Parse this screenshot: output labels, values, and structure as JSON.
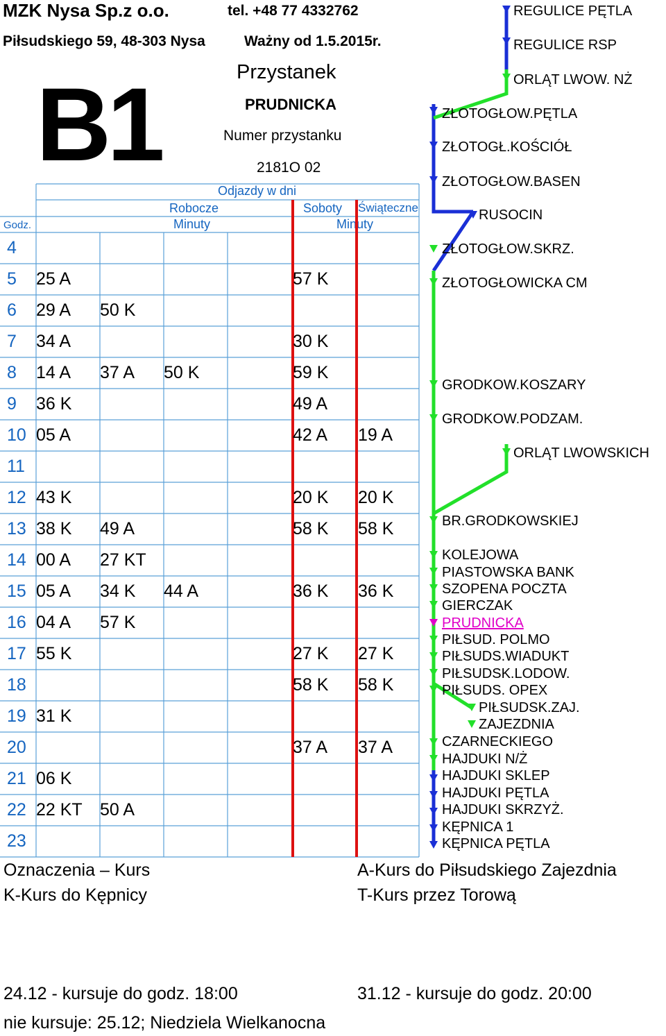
{
  "company": {
    "name": "MZK Nysa Sp.z o.o.",
    "phone": "tel. +48 77 4332762",
    "address": "Piłsudskiego 59, 48-303 Nysa",
    "valid_from": "Ważny od 1.5.2015r."
  },
  "route": "B1",
  "stop_block": {
    "label": "Przystanek",
    "name": "PRUDNICKA",
    "number_label": "Numer przystanku",
    "number": "2181O 02"
  },
  "table": {
    "departures_label": "Odjazdy w dni",
    "col_weekdays": "Robocze",
    "col_saturdays": "Soboty",
    "col_holidays": "Świąteczne",
    "hour_label": "Godz.",
    "minutes_label_1": "Minuty",
    "minutes_label_2": "Minuty",
    "rows": [
      {
        "hour": "4",
        "weekday": [
          "",
          "",
          ""
        ],
        "sat": "",
        "hol": ""
      },
      {
        "hour": "5",
        "weekday": [
          "25 A",
          "",
          ""
        ],
        "sat": "57 K",
        "hol": ""
      },
      {
        "hour": "6",
        "weekday": [
          "29 A",
          "50 K",
          ""
        ],
        "sat": "",
        "hol": ""
      },
      {
        "hour": "7",
        "weekday": [
          "34 A",
          "",
          ""
        ],
        "sat": "30 K",
        "hol": ""
      },
      {
        "hour": "8",
        "weekday": [
          "14 A",
          "37 A",
          "50 K"
        ],
        "sat": "59 K",
        "hol": ""
      },
      {
        "hour": "9",
        "weekday": [
          "36 K",
          "",
          ""
        ],
        "sat": "49 A",
        "hol": ""
      },
      {
        "hour": "10",
        "weekday": [
          "05 A",
          "",
          ""
        ],
        "sat": "42 A",
        "hol": "19 A"
      },
      {
        "hour": "11",
        "weekday": [
          "",
          "",
          ""
        ],
        "sat": "",
        "hol": ""
      },
      {
        "hour": "12",
        "weekday": [
          "43 K",
          "",
          ""
        ],
        "sat": "20 K",
        "hol": "20 K"
      },
      {
        "hour": "13",
        "weekday": [
          "38 K",
          "49 A",
          ""
        ],
        "sat": "58 K",
        "hol": "58 K"
      },
      {
        "hour": "14",
        "weekday": [
          "00 A",
          "27 KT",
          ""
        ],
        "sat": "",
        "hol": ""
      },
      {
        "hour": "15",
        "weekday": [
          "05 A",
          "34 K",
          "44 A"
        ],
        "sat": "36 K",
        "hol": "36 K"
      },
      {
        "hour": "16",
        "weekday": [
          "04 A",
          "57 K",
          ""
        ],
        "sat": "",
        "hol": ""
      },
      {
        "hour": "17",
        "weekday": [
          "55 K",
          "",
          ""
        ],
        "sat": "27 K",
        "hol": "27 K"
      },
      {
        "hour": "18",
        "weekday": [
          "",
          "",
          ""
        ],
        "sat": "58 K",
        "hol": "58 K"
      },
      {
        "hour": "19",
        "weekday": [
          "31 K",
          "",
          ""
        ],
        "sat": "",
        "hol": ""
      },
      {
        "hour": "20",
        "weekday": [
          "",
          "",
          ""
        ],
        "sat": "37 A",
        "hol": "37 A"
      },
      {
        "hour": "21",
        "weekday": [
          "06 K",
          "",
          ""
        ],
        "sat": "",
        "hol": ""
      },
      {
        "hour": "22",
        "weekday": [
          "22 KT",
          "50 A",
          ""
        ],
        "sat": "",
        "hol": ""
      },
      {
        "hour": "23",
        "weekday": [
          "",
          "",
          ""
        ],
        "sat": "",
        "hol": ""
      }
    ]
  },
  "stops": [
    {
      "name": "REGULICE PĘTLA"
    },
    {
      "name": "REGULICE RSP"
    },
    {
      "name": "ORLĄT LWOW. NŻ"
    },
    {
      "name": "ZŁOTOGŁOW.PĘTLA"
    },
    {
      "name": "ZŁOTOGŁ.KOŚCIÓŁ"
    },
    {
      "name": "ZŁOTOGŁOW.BASEN"
    },
    {
      "name": "RUSOCIN"
    },
    {
      "name": "ZŁOTOGŁOW.SKRZ."
    },
    {
      "name": "ZŁOTOGŁOWICKA CM"
    },
    {
      "name": "GRODKOW.KOSZARY"
    },
    {
      "name": "GRODKOW.PODZAM."
    },
    {
      "name": "ORLĄT LWOWSKICH"
    },
    {
      "name": "BR.GRODKOWSKIEJ"
    },
    {
      "name": "KOLEJOWA"
    },
    {
      "name": "PIASTOWSKA BANK"
    },
    {
      "name": "SZOPENA POCZTA"
    },
    {
      "name": "GIERCZAK"
    },
    {
      "name": "PRUDNICKA"
    },
    {
      "name": "PIŁSUD. POLMO"
    },
    {
      "name": "PIŁSUDS.WIADUKT"
    },
    {
      "name": "PIŁSUDSK.LODOW."
    },
    {
      "name": "PIŁSUDS. OPEX"
    },
    {
      "name": "PIŁSUDSK.ZAJ."
    },
    {
      "name": "ZAJEZDNIA"
    },
    {
      "name": "CZARNECKIEGO"
    },
    {
      "name": "HAJDUKI N/Ż"
    },
    {
      "name": "HAJDUKI SKLEP"
    },
    {
      "name": "HAJDUKI PĘTLA"
    },
    {
      "name": "HAJDUKI SKRZYŻ."
    },
    {
      "name": "KĘPNICA 1"
    },
    {
      "name": "KĘPNICA PĘTLA"
    }
  ],
  "legend": {
    "title": "Oznaczenia – Kurs",
    "a": "A-Kurs do Piłsudskiego Zajezdnia",
    "k": "K-Kurs do Kępnicy",
    "t": "T-Kurs przez Torową"
  },
  "notes": {
    "dec24": "24.12 - kursuje do godz. 18:00",
    "dec31": "31.12 - kursuje do godz. 20:00",
    "no_service": "nie kursuje: 25.12; Niedziela Wielkanocna"
  },
  "colors": {
    "blue_line": "#1a2fd6",
    "green_line": "#22e02a",
    "red_line": "#dd1111",
    "grid_blue": "#5aa0d8",
    "current_stop": "#e000c8",
    "hour_text": "#1565c0"
  }
}
